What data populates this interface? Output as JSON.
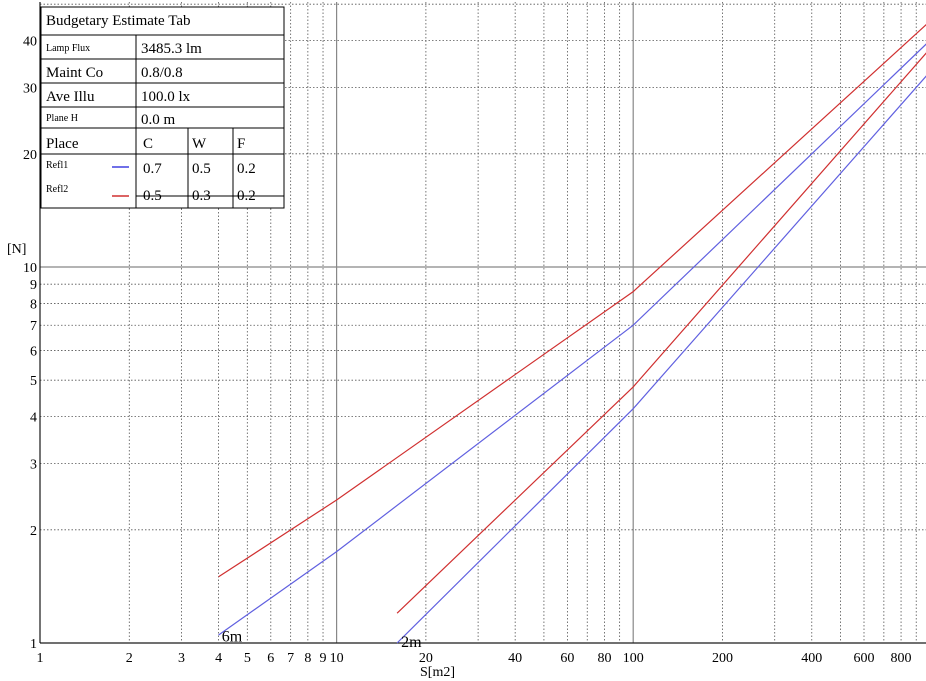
{
  "chart_data": {
    "type": "line",
    "title": "",
    "xlabel": "S[m2]",
    "ylabel": "[N]",
    "x_scale": "log",
    "y_scale": "log",
    "xlim": [
      1,
      1000
    ],
    "ylim": [
      1,
      50
    ],
    "grid": true,
    "x_tick_labels": [
      {
        "v": 1,
        "t": "1"
      },
      {
        "v": 2,
        "t": "2"
      },
      {
        "v": 3,
        "t": "3"
      },
      {
        "v": 4,
        "t": "4"
      },
      {
        "v": 5,
        "t": "5"
      },
      {
        "v": 6,
        "t": "6"
      },
      {
        "v": 7,
        "t": "7"
      },
      {
        "v": 8,
        "t": "8"
      },
      {
        "v": 9,
        "t": "9"
      },
      {
        "v": 10,
        "t": "10"
      },
      {
        "v": 20,
        "t": "20"
      },
      {
        "v": 40,
        "t": "40"
      },
      {
        "v": 60,
        "t": "60"
      },
      {
        "v": 80,
        "t": "80"
      },
      {
        "v": 100,
        "t": "100"
      },
      {
        "v": 200,
        "t": "200"
      },
      {
        "v": 400,
        "t": "400"
      },
      {
        "v": 600,
        "t": "600"
      },
      {
        "v": 800,
        "t": "800"
      }
    ],
    "y_tick_labels": [
      {
        "v": 1,
        "t": "1"
      },
      {
        "v": 2,
        "t": "2"
      },
      {
        "v": 3,
        "t": "3"
      },
      {
        "v": 4,
        "t": "4"
      },
      {
        "v": 5,
        "t": "5"
      },
      {
        "v": 6,
        "t": "6"
      },
      {
        "v": 7,
        "t": "7"
      },
      {
        "v": 8,
        "t": "8"
      },
      {
        "v": 9,
        "t": "9"
      },
      {
        "v": 10,
        "t": "10"
      },
      {
        "v": 20,
        "t": "20"
      },
      {
        "v": 30,
        "t": "30"
      },
      {
        "v": 40,
        "t": "40"
      }
    ],
    "series": [
      {
        "group": "6m",
        "color": "#d03030",
        "points": [
          [
            4,
            1.5
          ],
          [
            10,
            2.4
          ],
          [
            100,
            8.6
          ],
          [
            1000,
            45
          ]
        ]
      },
      {
        "group": "6m",
        "color": "#6060e0",
        "points": [
          [
            4,
            1.05
          ],
          [
            10,
            1.75
          ],
          [
            100,
            7.0
          ],
          [
            1000,
            40
          ]
        ]
      },
      {
        "group": "2m",
        "color": "#d03030",
        "points": [
          [
            16,
            1.2
          ],
          [
            100,
            4.8
          ],
          [
            1000,
            38
          ]
        ]
      },
      {
        "group": "2m",
        "color": "#6060e0",
        "points": [
          [
            16,
            1.0
          ],
          [
            100,
            4.2
          ],
          [
            1000,
            33
          ]
        ]
      }
    ],
    "annotations": [
      {
        "text": "6m",
        "x": 4.1,
        "y": 1.01
      },
      {
        "text": "2m",
        "x": 16.5,
        "y": 0.975
      }
    ],
    "legend_table": {
      "title": "Budgetary Estimate Tab",
      "rows": [
        {
          "label": "Lamp Flux",
          "value": "3485.3 lm"
        },
        {
          "label": "Maint Co",
          "value": "0.8/0.8"
        },
        {
          "label": "Ave Illu",
          "value": "100.0 lx"
        },
        {
          "label": "Plane H",
          "value": "0.0 m"
        }
      ],
      "header": [
        "Place",
        "C",
        "W",
        "F"
      ],
      "refl": [
        {
          "name": "Refl1",
          "color": "#4040e0",
          "c": "0.7",
          "w": "0.5",
          "f": "0.2"
        },
        {
          "name": "Refl2",
          "color": "#d03030",
          "c": "0.5",
          "w": "0.3",
          "f": "0.2"
        }
      ]
    }
  }
}
